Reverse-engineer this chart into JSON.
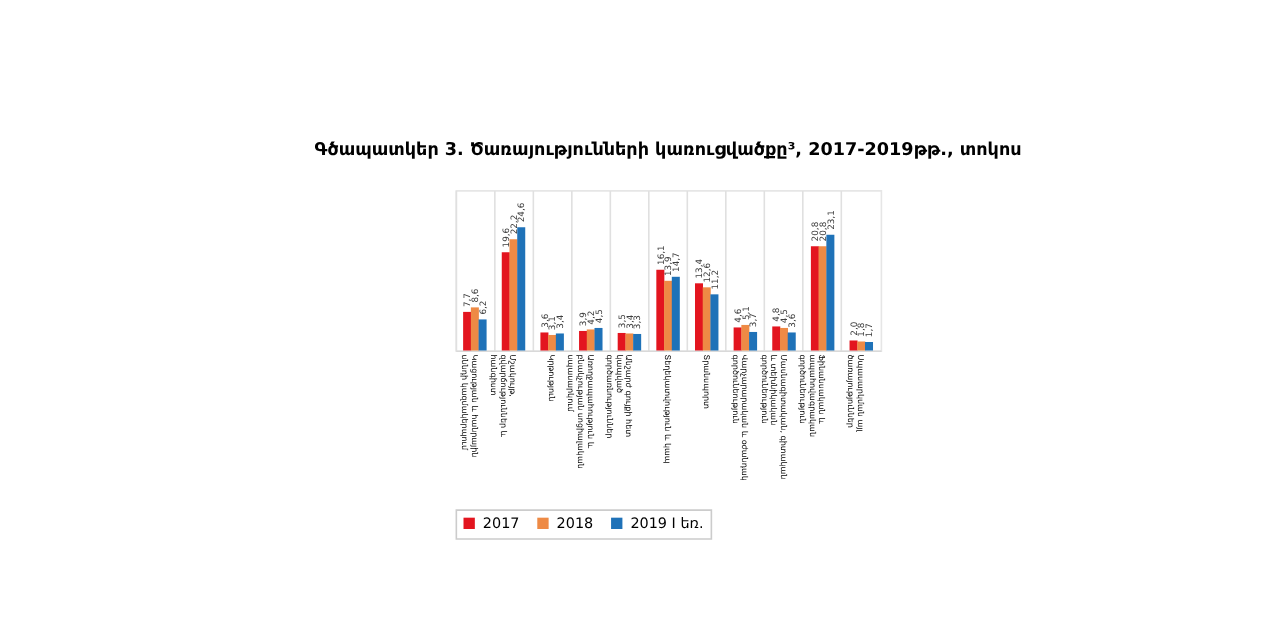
{
  "chart_data": {
    "type": "bar",
    "title": "Գծապատկեր 3. Ծառայությունների կառուցվածքը³, 2017-2019թթ., տոկոս",
    "categories": [
      "Կացության և հանրային սննդի կազմակերպում",
      "Մշակույթ, զվարճություններ և հանգիստ",
      "Կրթություն",
      "Առողջապահություն և բնակչության սոցիալական սպասարկում",
      "Անշարժ գույքի հետ կապված գործառնություններ",
      "Տեղեկատվություն և կապ",
      "Տրանսպորտ",
      "Վարչարարական և օժանդակ գործունեություն",
      "Մասնագիտական, գիտական և տեխնիկական գործունեություն",
      "Ֆինանսական և ապահովագրական գործունեություն",
      "Սպասարկման այլ ծառայություններ"
    ],
    "series": [
      {
        "name": "2017",
        "color": "#e3151f",
        "values": [
          7.7,
          19.6,
          3.6,
          3.9,
          3.5,
          16.1,
          13.4,
          4.6,
          4.8,
          20.8,
          2.0
        ],
        "value_labels": [
          "7,7",
          "19,6",
          "3,6",
          "3,9",
          "3,5",
          "16,1",
          "13,4",
          "4,6",
          "4,8",
          "20,8",
          "2,0"
        ]
      },
      {
        "name": "2018",
        "color": "#ee8a45",
        "values": [
          8.6,
          22.2,
          3.1,
          4.2,
          3.4,
          13.9,
          12.6,
          5.1,
          4.5,
          20.8,
          1.8
        ],
        "value_labels": [
          "8,6",
          "22,2",
          "3,1",
          "4,2",
          "3,4",
          "13,9",
          "12,6",
          "5,1",
          "4,5",
          "20,8",
          "1,8"
        ]
      },
      {
        "name": "2019 I եռ.",
        "color": "#1f72b8",
        "values": [
          6.2,
          24.6,
          3.4,
          4.5,
          3.3,
          14.7,
          11.2,
          3.7,
          3.6,
          23.1,
          1.7
        ],
        "value_labels": [
          "6,2",
          "24,6",
          "3,4",
          "4,5",
          "3,3",
          "14,7",
          "11,2",
          "3,7",
          "3,6",
          "23,1",
          "1,7"
        ]
      }
    ],
    "grid": "x",
    "legend": "bottom"
  }
}
